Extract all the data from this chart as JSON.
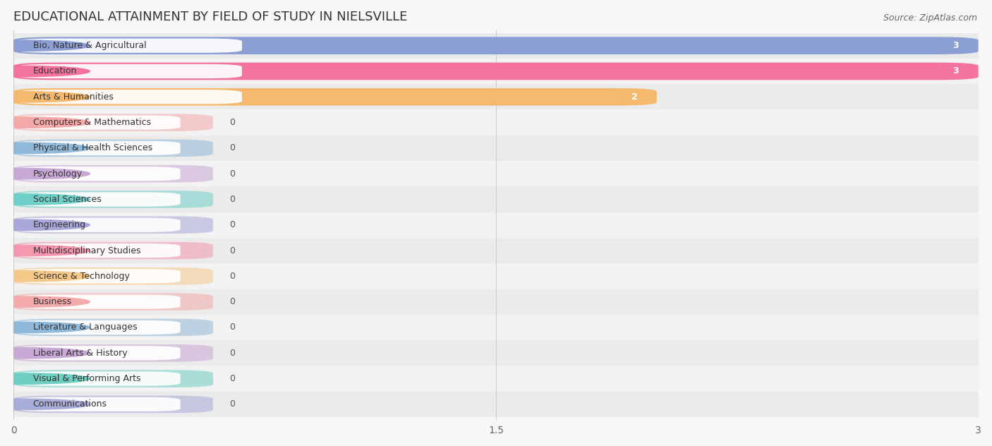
{
  "title": "EDUCATIONAL ATTAINMENT BY FIELD OF STUDY IN NIELSVILLE",
  "source": "Source: ZipAtlas.com",
  "categories": [
    "Bio, Nature & Agricultural",
    "Education",
    "Arts & Humanities",
    "Computers & Mathematics",
    "Physical & Health Sciences",
    "Psychology",
    "Social Sciences",
    "Engineering",
    "Multidisciplinary Studies",
    "Science & Technology",
    "Business",
    "Literature & Languages",
    "Liberal Arts & History",
    "Visual & Performing Arts",
    "Communications"
  ],
  "values": [
    3,
    3,
    2,
    0,
    0,
    0,
    0,
    0,
    0,
    0,
    0,
    0,
    0,
    0,
    0
  ],
  "bar_colors": [
    "#8b9fd4",
    "#f472a0",
    "#f5b96e",
    "#f4a8a8",
    "#90b8d8",
    "#c8a8d4",
    "#6ecec8",
    "#a8a8d8",
    "#f498b0",
    "#f5c88a",
    "#f4aaaa",
    "#90b8d8",
    "#c8a8d4",
    "#6ecec0",
    "#a8acd8"
  ],
  "label_pill_colors": [
    "#8b9fd4",
    "#f472a0",
    "#f5b96e",
    "#f4a8a8",
    "#90b8d8",
    "#c8a8d4",
    "#6ecec8",
    "#a8a8d8",
    "#f498b0",
    "#f5c88a",
    "#f4aaaa",
    "#90b8d8",
    "#c8a8d4",
    "#6ecec0",
    "#a8acd8"
  ],
  "xlim": [
    0,
    3
  ],
  "xticks": [
    0,
    1.5,
    3
  ],
  "background_color": "#f7f7f7",
  "row_bg_colors": [
    "#ebebeb",
    "#f2f2f2"
  ],
  "bar_bg_color": "#e2e2e2",
  "title_fontsize": 13,
  "label_fontsize": 9,
  "value_fontsize": 9,
  "zero_bar_width": 0.62
}
